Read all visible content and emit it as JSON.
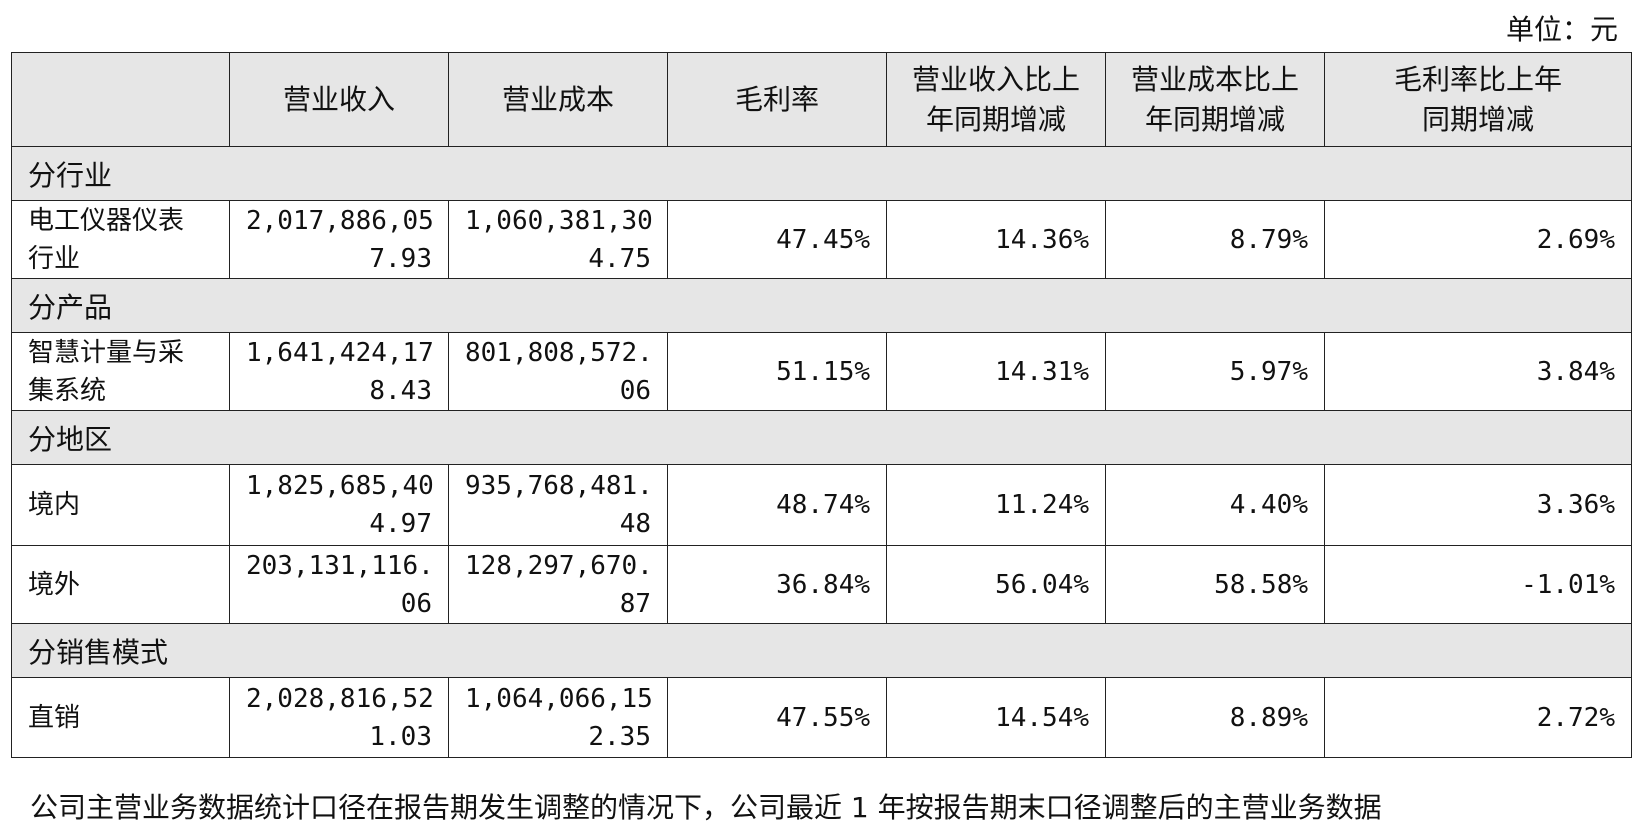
{
  "unit_label": "单位：元",
  "headers": [
    "",
    "营业收入",
    "营业成本",
    "毛利率",
    "营业收入比上年同期增减",
    "营业成本比上年同期增减",
    "毛利率比上年同期增减"
  ],
  "header_lines": {
    "rev_change": [
      "营业收入比上",
      "年同期增减"
    ],
    "cost_change": [
      "营业成本比上",
      "年同期增减"
    ],
    "margin_change": [
      "毛利率比上年",
      "同期增减"
    ]
  },
  "sections": [
    {
      "title": "分行业",
      "rows": [
        {
          "name": [
            "电工仪器仪表",
            "行业"
          ],
          "revenue": [
            "2,017,886,05",
            "7.93"
          ],
          "cost": [
            "1,060,381,30",
            "4.75"
          ],
          "margin": "47.45%",
          "rev_change": "14.36%",
          "cost_change": "8.79%",
          "margin_change": "2.69%"
        }
      ]
    },
    {
      "title": "分产品",
      "rows": [
        {
          "name": [
            "智慧计量与采",
            "集系统"
          ],
          "revenue": [
            "1,641,424,17",
            "8.43"
          ],
          "cost": [
            "801,808,572.",
            "06"
          ],
          "margin": "51.15%",
          "rev_change": "14.31%",
          "cost_change": "5.97%",
          "margin_change": "3.84%"
        }
      ]
    },
    {
      "title": "分地区",
      "rows": [
        {
          "name": [
            "境内"
          ],
          "revenue": [
            "1,825,685,40",
            "4.97"
          ],
          "cost": [
            "935,768,481.",
            "48"
          ],
          "margin": "48.74%",
          "rev_change": "11.24%",
          "cost_change": "4.40%",
          "margin_change": "3.36%"
        },
        {
          "name": [
            "境外"
          ],
          "revenue": [
            "203,131,116.",
            "06"
          ],
          "cost": [
            "128,297,670.",
            "87"
          ],
          "margin": "36.84%",
          "rev_change": "56.04%",
          "cost_change": "58.58%",
          "margin_change": "-1.01%"
        }
      ]
    },
    {
      "title": "分销售模式",
      "rows": [
        {
          "name": [
            "直销"
          ],
          "revenue": [
            "2,028,816,52",
            "1.03"
          ],
          "cost": [
            "1,064,066,15",
            "2.35"
          ],
          "margin": "47.55%",
          "rev_change": "14.54%",
          "cost_change": "8.89%",
          "margin_change": "2.72%"
        }
      ]
    }
  ],
  "footnote": "公司主营业务数据统计口径在报告期发生调整的情况下，公司最近 1 年按报告期末口径调整后的主营业务数据"
}
